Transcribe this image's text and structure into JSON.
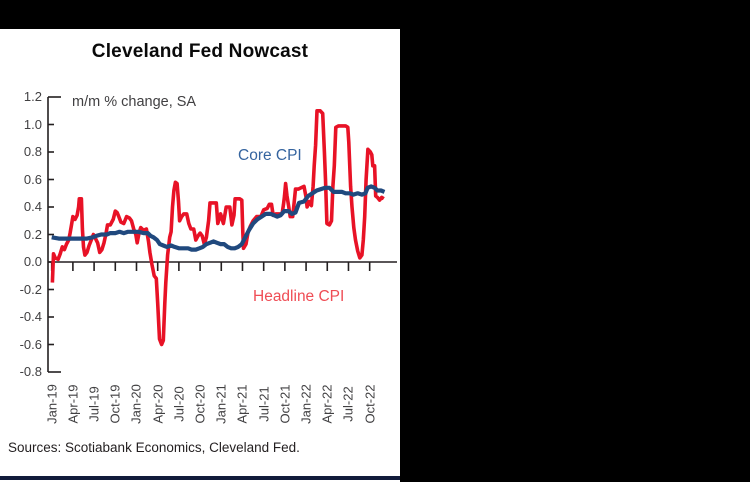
{
  "page": {
    "background": "#000000",
    "panel_background": "#ffffff",
    "bottom_bar_color": "#111b3a"
  },
  "footer": {
    "sources": "Sources: Scotiabank Economics, Cleveland Fed."
  },
  "chart_data": {
    "type": "line",
    "title": "Cleveland Fed Nowcast",
    "annotation": "m/m % change, SA",
    "xlabel": "",
    "ylabel": "m/m % change, SA",
    "grid": false,
    "legend_position": "inline-labels",
    "x_unit": "months since Jan-2019",
    "xlim": [
      0,
      47.5
    ],
    "ylim": [
      -0.8,
      1.2
    ],
    "y_ticks": [
      1.2,
      1.0,
      0.8,
      0.6,
      0.4,
      0.2,
      0.0,
      -0.2,
      -0.4,
      -0.6,
      -0.8
    ],
    "y_tick_labels": [
      "1.2",
      "1.0",
      "0.8",
      "0.6",
      "0.4",
      "0.2",
      "0.0",
      "-0.2",
      "-0.4",
      "-0.6",
      "-0.8"
    ],
    "x_tick_labels": [
      "Jan-19",
      "Apr-19",
      "Jul-19",
      "Oct-19",
      "Jan-20",
      "Apr-20",
      "Jul-20",
      "Oct-20",
      "Jan-21",
      "Apr-21",
      "Jul-21",
      "Oct-21",
      "Jan-22",
      "Apr-22",
      "Jul-22",
      "Oct-22"
    ],
    "x_tick_months": [
      0,
      3,
      6,
      9,
      12,
      15,
      18,
      21,
      24,
      27,
      30,
      33,
      36,
      39,
      42,
      45
    ],
    "axis_color": "#231f20",
    "series": [
      {
        "name": "Headline CPI",
        "color": "#e81226",
        "label_color": "#ef4d55",
        "stroke_width": 3.6,
        "points": [
          [
            0.1,
            -0.15
          ],
          [
            0.25,
            0.06
          ],
          [
            0.5,
            0.03
          ],
          [
            0.9,
            0.02
          ],
          [
            1.2,
            0.06
          ],
          [
            1.5,
            0.11
          ],
          [
            1.8,
            0.09
          ],
          [
            2.1,
            0.13
          ],
          [
            2.4,
            0.16
          ],
          [
            2.6,
            0.21
          ],
          [
            2.8,
            0.27
          ],
          [
            3.0,
            0.33
          ],
          [
            3.3,
            0.31
          ],
          [
            3.6,
            0.34
          ],
          [
            3.8,
            0.4
          ],
          [
            3.9,
            0.46
          ],
          [
            4.2,
            0.46
          ],
          [
            4.35,
            0.24
          ],
          [
            4.5,
            0.11
          ],
          [
            4.7,
            0.05
          ],
          [
            5.0,
            0.07
          ],
          [
            5.3,
            0.12
          ],
          [
            5.6,
            0.16
          ],
          [
            5.9,
            0.2
          ],
          [
            6.2,
            0.17
          ],
          [
            6.5,
            0.14
          ],
          [
            6.8,
            0.07
          ],
          [
            7.1,
            0.09
          ],
          [
            7.4,
            0.14
          ],
          [
            7.7,
            0.21
          ],
          [
            7.9,
            0.27
          ],
          [
            8.3,
            0.27
          ],
          [
            8.7,
            0.31
          ],
          [
            9.0,
            0.37
          ],
          [
            9.25,
            0.36
          ],
          [
            9.5,
            0.33
          ],
          [
            9.8,
            0.29
          ],
          [
            10.2,
            0.28
          ],
          [
            10.6,
            0.33
          ],
          [
            11.0,
            0.32
          ],
          [
            11.3,
            0.3
          ],
          [
            11.6,
            0.24
          ],
          [
            11.9,
            0.2
          ],
          [
            12.1,
            0.14
          ],
          [
            12.35,
            0.21
          ],
          [
            12.6,
            0.25
          ],
          [
            13.0,
            0.23
          ],
          [
            13.4,
            0.24
          ],
          [
            13.7,
            0.15
          ],
          [
            13.9,
            0.07
          ],
          [
            14.2,
            -0.02
          ],
          [
            14.5,
            -0.1
          ],
          [
            14.8,
            -0.12
          ],
          [
            15.0,
            -0.3
          ],
          [
            15.25,
            -0.56
          ],
          [
            15.55,
            -0.6
          ],
          [
            15.8,
            -0.57
          ],
          [
            16.0,
            -0.3
          ],
          [
            16.15,
            -0.15
          ],
          [
            16.4,
            0.05
          ],
          [
            16.7,
            0.18
          ],
          [
            16.9,
            0.22
          ],
          [
            17.1,
            0.4
          ],
          [
            17.3,
            0.52
          ],
          [
            17.5,
            0.58
          ],
          [
            17.75,
            0.57
          ],
          [
            17.95,
            0.44
          ],
          [
            18.1,
            0.3
          ],
          [
            18.4,
            0.33
          ],
          [
            18.7,
            0.35
          ],
          [
            19.1,
            0.35
          ],
          [
            19.4,
            0.28
          ],
          [
            19.7,
            0.24
          ],
          [
            20.1,
            0.24
          ],
          [
            20.4,
            0.16
          ],
          [
            20.7,
            0.19
          ],
          [
            21.0,
            0.21
          ],
          [
            21.3,
            0.19
          ],
          [
            21.6,
            0.13
          ],
          [
            21.9,
            0.18
          ],
          [
            22.2,
            0.3
          ],
          [
            22.4,
            0.43
          ],
          [
            23.0,
            0.43
          ],
          [
            23.3,
            0.43
          ],
          [
            23.5,
            0.28
          ],
          [
            23.9,
            0.35
          ],
          [
            24.3,
            0.28
          ],
          [
            24.7,
            0.4
          ],
          [
            25.2,
            0.4
          ],
          [
            25.5,
            0.27
          ],
          [
            25.8,
            0.34
          ],
          [
            25.95,
            0.46
          ],
          [
            26.6,
            0.46
          ],
          [
            26.9,
            0.45
          ],
          [
            27.05,
            0.22
          ],
          [
            27.15,
            0.1
          ],
          [
            27.5,
            0.13
          ],
          [
            27.8,
            0.22
          ],
          [
            28.1,
            0.26
          ],
          [
            28.5,
            0.3
          ],
          [
            29.0,
            0.33
          ],
          [
            29.6,
            0.33
          ],
          [
            30.0,
            0.38
          ],
          [
            30.5,
            0.39
          ],
          [
            30.8,
            0.42
          ],
          [
            31.1,
            0.42
          ],
          [
            31.35,
            0.34
          ],
          [
            31.7,
            0.35
          ],
          [
            32.3,
            0.35
          ],
          [
            32.6,
            0.35
          ],
          [
            32.8,
            0.42
          ],
          [
            32.95,
            0.48
          ],
          [
            33.1,
            0.57
          ],
          [
            33.3,
            0.48
          ],
          [
            33.55,
            0.4
          ],
          [
            33.75,
            0.33
          ],
          [
            34.1,
            0.33
          ],
          [
            34.35,
            0.45
          ],
          [
            34.5,
            0.53
          ],
          [
            34.9,
            0.53
          ],
          [
            35.3,
            0.54
          ],
          [
            35.7,
            0.55
          ],
          [
            36.0,
            0.47
          ],
          [
            36.15,
            0.4
          ],
          [
            36.45,
            0.44
          ],
          [
            36.75,
            0.41
          ],
          [
            37.0,
            0.55
          ],
          [
            37.15,
            0.7
          ],
          [
            37.35,
            0.85
          ],
          [
            37.55,
            1.1
          ],
          [
            38.0,
            1.1
          ],
          [
            38.35,
            1.08
          ],
          [
            38.6,
            0.8
          ],
          [
            38.75,
            0.6
          ],
          [
            38.95,
            0.28
          ],
          [
            39.3,
            0.27
          ],
          [
            39.6,
            0.3
          ],
          [
            39.8,
            0.55
          ],
          [
            40.0,
            0.7
          ],
          [
            40.2,
            0.98
          ],
          [
            40.6,
            0.99
          ],
          [
            41.1,
            0.99
          ],
          [
            41.6,
            0.99
          ],
          [
            41.9,
            0.98
          ],
          [
            42.05,
            0.87
          ],
          [
            42.3,
            0.55
          ],
          [
            42.5,
            0.4
          ],
          [
            42.75,
            0.25
          ],
          [
            43.0,
            0.16
          ],
          [
            43.3,
            0.08
          ],
          [
            43.6,
            0.03
          ],
          [
            43.9,
            0.05
          ],
          [
            44.1,
            0.16
          ],
          [
            44.3,
            0.33
          ],
          [
            44.5,
            0.6
          ],
          [
            44.75,
            0.82
          ],
          [
            45.1,
            0.8
          ],
          [
            45.3,
            0.78
          ],
          [
            45.45,
            0.7
          ],
          [
            45.7,
            0.7
          ],
          [
            45.85,
            0.48
          ],
          [
            46.1,
            0.47
          ],
          [
            46.4,
            0.45
          ],
          [
            46.7,
            0.47
          ],
          [
            47.0,
            0.46
          ]
        ]
      },
      {
        "name": "Core CPI",
        "color": "#20497e",
        "label_color": "#35649f",
        "stroke_width": 4.2,
        "points": [
          [
            0.0,
            0.18
          ],
          [
            1.0,
            0.17
          ],
          [
            2.0,
            0.17
          ],
          [
            3.0,
            0.17
          ],
          [
            4.0,
            0.17
          ],
          [
            5.0,
            0.17
          ],
          [
            5.8,
            0.18
          ],
          [
            6.3,
            0.19
          ],
          [
            7.0,
            0.2
          ],
          [
            7.8,
            0.2
          ],
          [
            8.3,
            0.21
          ],
          [
            9.0,
            0.21
          ],
          [
            9.6,
            0.22
          ],
          [
            10.2,
            0.21
          ],
          [
            10.8,
            0.22
          ],
          [
            11.5,
            0.22
          ],
          [
            12.3,
            0.22
          ],
          [
            13.0,
            0.21
          ],
          [
            13.6,
            0.21
          ],
          [
            14.0,
            0.19
          ],
          [
            14.4,
            0.18
          ],
          [
            14.9,
            0.16
          ],
          [
            15.3,
            0.13
          ],
          [
            15.8,
            0.12
          ],
          [
            16.3,
            0.11
          ],
          [
            16.9,
            0.12
          ],
          [
            17.4,
            0.11
          ],
          [
            18.0,
            0.1
          ],
          [
            18.7,
            0.1
          ],
          [
            19.3,
            0.1
          ],
          [
            19.8,
            0.09
          ],
          [
            20.4,
            0.09
          ],
          [
            20.9,
            0.1
          ],
          [
            21.4,
            0.11
          ],
          [
            21.9,
            0.13
          ],
          [
            22.4,
            0.14
          ],
          [
            22.9,
            0.15
          ],
          [
            23.4,
            0.14
          ],
          [
            23.9,
            0.13
          ],
          [
            24.4,
            0.13
          ],
          [
            24.9,
            0.11
          ],
          [
            25.4,
            0.1
          ],
          [
            25.9,
            0.1
          ],
          [
            26.4,
            0.11
          ],
          [
            26.9,
            0.13
          ],
          [
            27.3,
            0.17
          ],
          [
            27.9,
            0.23
          ],
          [
            28.5,
            0.28
          ],
          [
            29.1,
            0.31
          ],
          [
            29.7,
            0.33
          ],
          [
            30.3,
            0.35
          ],
          [
            31.0,
            0.35
          ],
          [
            31.5,
            0.34
          ],
          [
            31.9,
            0.33
          ],
          [
            32.4,
            0.34
          ],
          [
            32.9,
            0.37
          ],
          [
            33.5,
            0.37
          ],
          [
            34.0,
            0.35
          ],
          [
            34.5,
            0.36
          ],
          [
            35.0,
            0.43
          ],
          [
            35.7,
            0.44
          ],
          [
            36.3,
            0.48
          ],
          [
            36.9,
            0.5
          ],
          [
            37.5,
            0.52
          ],
          [
            38.1,
            0.53
          ],
          [
            38.7,
            0.54
          ],
          [
            39.3,
            0.54
          ],
          [
            39.9,
            0.51
          ],
          [
            40.5,
            0.51
          ],
          [
            41.1,
            0.51
          ],
          [
            41.6,
            0.5
          ],
          [
            42.2,
            0.5
          ],
          [
            42.7,
            0.49
          ],
          [
            43.3,
            0.5
          ],
          [
            43.9,
            0.49
          ],
          [
            44.4,
            0.5
          ],
          [
            44.7,
            0.54
          ],
          [
            45.2,
            0.55
          ],
          [
            45.7,
            0.54
          ],
          [
            46.1,
            0.52
          ],
          [
            46.6,
            0.52
          ],
          [
            47.1,
            0.51
          ]
        ]
      }
    ]
  }
}
